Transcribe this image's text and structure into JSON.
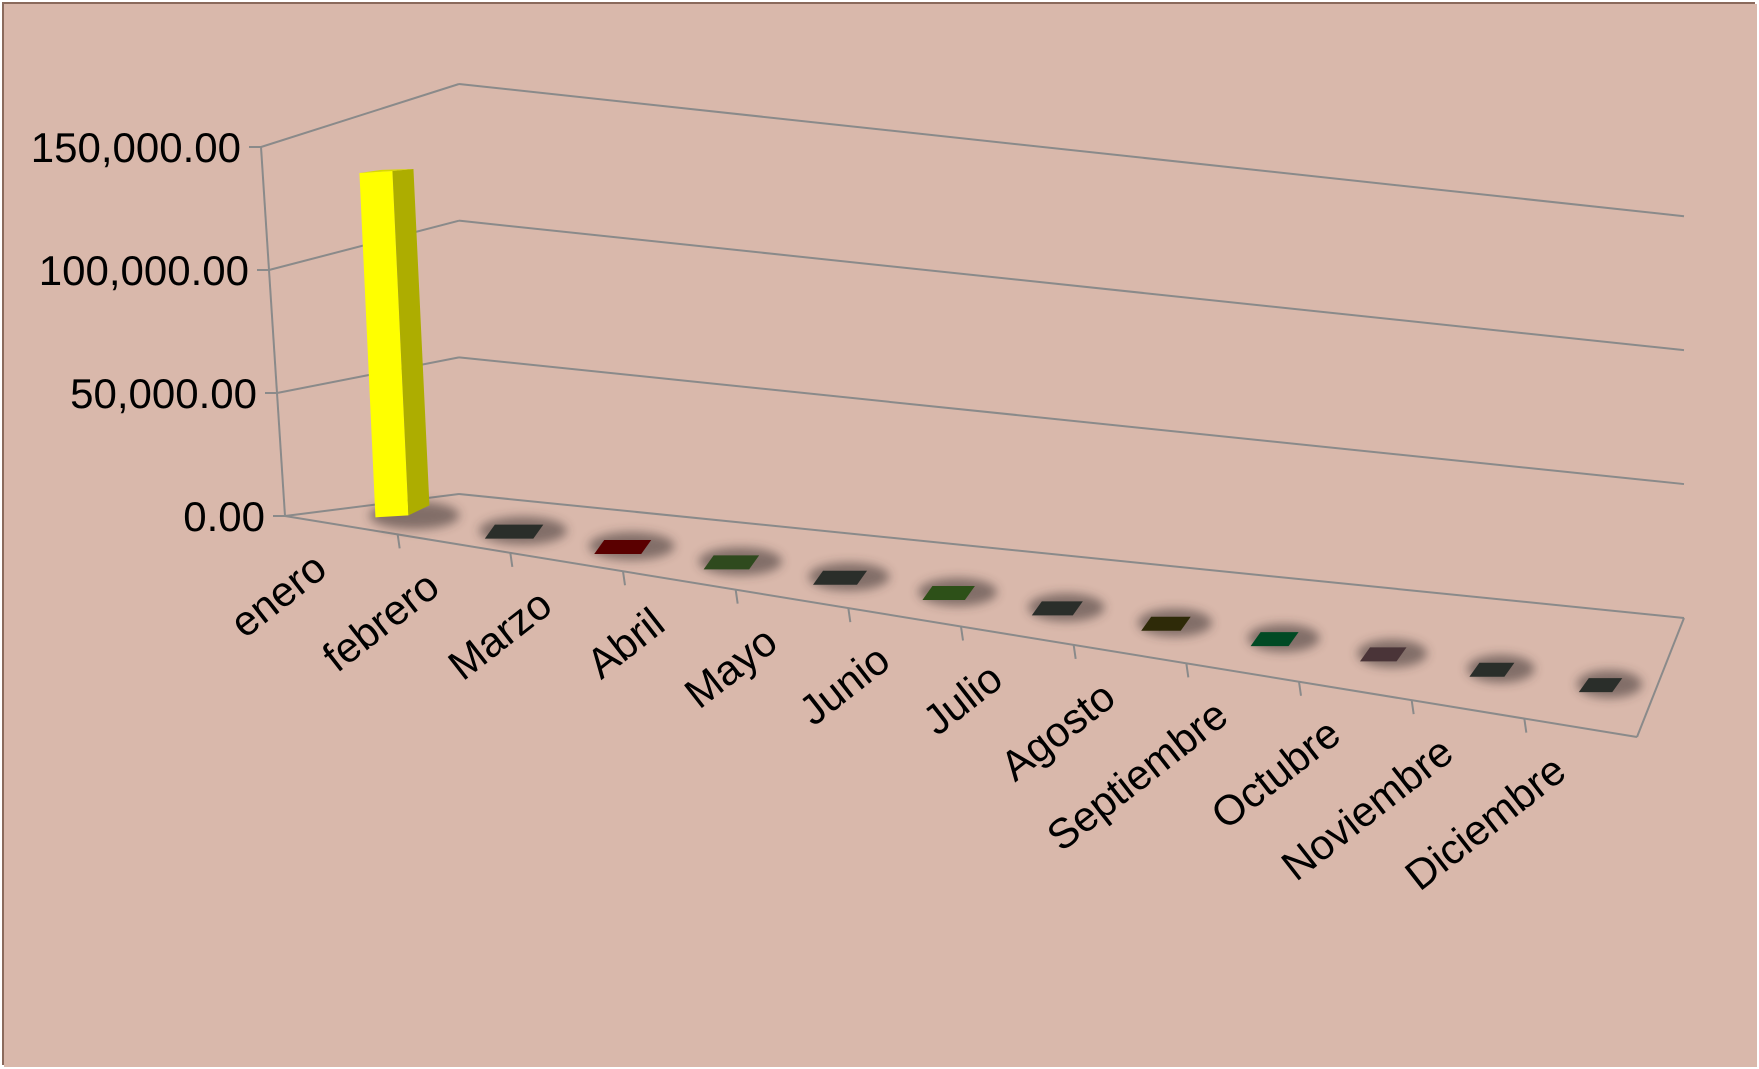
{
  "chart_data": {
    "type": "bar",
    "style": "3d-column",
    "categories": [
      "enero",
      "febrero",
      "Marzo",
      "Abril",
      "Mayo",
      "Junio",
      "Julio",
      "Agosto",
      "Septiembre",
      "Octubre",
      "Noviembre",
      "Diciembre"
    ],
    "values": [
      144000,
      0,
      0,
      0,
      0,
      0,
      0,
      0,
      0,
      0,
      0,
      0
    ],
    "bar_colors": [
      "#ffff00",
      "#2a2e2a",
      "#5a0000",
      "#2f4a1e",
      "#2a2e2a",
      "#2d5018",
      "#2a2e2a",
      "#2e2a08",
      "#004a24",
      "#4a3438",
      "#2a2e2a",
      "#2a2e2a"
    ],
    "y_ticks": [
      "0.00",
      "50,000.00",
      "100,000.00",
      "150,000.00"
    ],
    "ylim": [
      0,
      150000
    ],
    "title": "",
    "xlabel": "",
    "ylabel": "",
    "grid": true,
    "legend": "none",
    "background_color": "#d9b8ab",
    "border_color": "#8a6a5c",
    "axis_color": "#8a8a8a"
  }
}
